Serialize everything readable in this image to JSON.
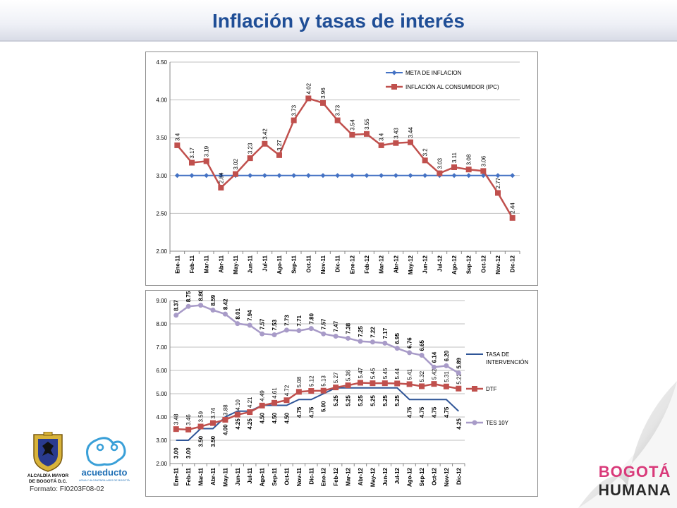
{
  "header": {
    "title": "Inflación y tasas de interés"
  },
  "footer": {
    "format_label": "Formato: FI0203F08-02",
    "logo_bogota": "ALCALDÍA MAYOR DE BOGOTÁ D.C.",
    "logo_bogota_lines": [
      "ALCALDÍA MAYOR",
      "DE BOGOTÁ D.C."
    ],
    "logo_acueducto": "acueducto",
    "logo_acueducto_sub": "AGUA Y ALCANTARILLADO DE BOGOTÁ",
    "logo_bh_top": "BOGOTÁ",
    "logo_bh_bottom": "HUMANA"
  },
  "colors": {
    "title": "#1f4e96",
    "blue": "#4472c4",
    "red": "#c0504d",
    "purple": "#a89bc8",
    "dark_blue": "#2f5597"
  },
  "chart_data": [
    {
      "type": "line",
      "title": "",
      "categories": [
        "Ene-11",
        "Feb-11",
        "Mar-11",
        "Abr-11",
        "May-11",
        "Jun-11",
        "Jul-11",
        "Ago-11",
        "Sep-11",
        "Oct-11",
        "Nov-11",
        "Dic-11",
        "Ene-12",
        "Feb-12",
        "Mar-12",
        "Abr-12",
        "May-12",
        "Jun-12",
        "Jul-12",
        "Ago-12",
        "Sep-12",
        "Oct-12",
        "Nov-12",
        "Dic-12"
      ],
      "ylim": [
        2.0,
        4.5
      ],
      "yticks": [
        "2.00",
        "2.50",
        "3.00",
        "3.50",
        "4.00",
        "4.50"
      ],
      "grid": true,
      "legend": "top-right",
      "series": [
        {
          "name": "META DE INFLACION",
          "values": [
            3,
            3,
            3,
            3,
            3,
            3,
            3,
            3,
            3,
            3,
            3,
            3,
            3,
            3,
            3,
            3,
            3,
            3,
            3,
            3,
            3,
            3,
            3,
            3
          ]
        },
        {
          "name": "INFLACIÓN AL CONSUMIDOR (IPC)",
          "values": [
            3.4,
            3.17,
            3.19,
            2.84,
            3.02,
            3.23,
            3.42,
            3.27,
            3.73,
            4.02,
            3.96,
            3.73,
            3.54,
            3.55,
            3.4,
            3.43,
            3.44,
            3.2,
            3.03,
            3.11,
            3.08,
            3.06,
            2.77,
            2.44
          ],
          "labels": [
            "3.4",
            "3.17",
            "3.19",
            "2.84",
            "3.02",
            "3.23",
            "3.42",
            "3.27",
            "3.73",
            "4.02",
            "3.96",
            "3.73",
            "3.54",
            "3.55",
            "3.4",
            "3.43",
            "3.44",
            "3.2",
            "3.03",
            "3.11",
            "3.08",
            "3.06",
            "2.77",
            "2.44"
          ]
        }
      ]
    },
    {
      "type": "line",
      "title": "",
      "categories": [
        "Ene-11",
        "Feb-11",
        "Mar-11",
        "Abr-11",
        "May-11",
        "Jun-11",
        "Jul-11",
        "Ago-11",
        "Sep-11",
        "Oct-11",
        "Nov-11",
        "Dic-11",
        "Ene-12",
        "Feb-12",
        "Mar-12",
        "Abr-12",
        "May-12",
        "Jun-12",
        "Jul-12",
        "Ago-12",
        "Sep-12",
        "Oct-12",
        "Nov-12",
        "Dic-12"
      ],
      "ylim": [
        2.0,
        9.0
      ],
      "yticks": [
        "2.00",
        "3.00",
        "4.00",
        "5.00",
        "6.00",
        "7.00",
        "8.00",
        "9.00"
      ],
      "grid": true,
      "legend": "right",
      "series": [
        {
          "name": "TASA DE INTERVENCIÓN",
          "values": [
            3.0,
            3.0,
            3.5,
            3.5,
            4.0,
            4.25,
            4.25,
            4.5,
            4.5,
            4.5,
            4.75,
            4.75,
            5.0,
            5.25,
            5.25,
            5.25,
            5.25,
            5.25,
            5.25,
            4.75,
            4.75,
            4.75,
            4.75,
            4.25
          ],
          "labels": [
            "3.00",
            "3.00",
            "3.50",
            "3.50",
            "4.00",
            "4.25",
            "4.25",
            "4.50",
            "4.50",
            "4.50",
            "4.75",
            "4.75",
            "5.00",
            "5.25",
            "5.25",
            "5.25",
            "5.25",
            "5.25",
            "5.25",
            "4.75",
            "4.75",
            "4.75",
            "4.75",
            "4.25"
          ]
        },
        {
          "name": "DTF",
          "values": [
            3.48,
            3.46,
            3.59,
            3.74,
            3.88,
            4.1,
            4.21,
            4.49,
            4.61,
            4.72,
            5.08,
            5.12,
            5.13,
            5.27,
            5.36,
            5.47,
            5.45,
            5.45,
            5.44,
            5.41,
            5.32,
            5.42,
            5.31,
            5.22
          ],
          "labels": [
            "3.48",
            "3.46",
            "3.59",
            "3.74",
            "3.88",
            "4.10",
            "4.21",
            "4.49",
            "4.61",
            "4.72",
            "5.08",
            "5.12",
            "5.13",
            "5.27",
            "5.36",
            "5.47",
            "5.45",
            "5.45",
            "5.44",
            "5.41",
            "5.32",
            "5.42",
            "5.31",
            "5.22"
          ]
        },
        {
          "name": "TES 10Y",
          "values": [
            8.37,
            8.75,
            8.8,
            8.59,
            8.42,
            8.01,
            7.94,
            7.57,
            7.53,
            7.73,
            7.71,
            7.8,
            7.57,
            7.47,
            7.38,
            7.25,
            7.22,
            7.17,
            6.95,
            6.76,
            6.65,
            6.14,
            6.2,
            5.89
          ],
          "labels": [
            "8.37",
            "8.75",
            "8.80",
            "8.59",
            "8.42",
            "8.01",
            "7.94",
            "7.57",
            "7.53",
            "7.73",
            "7.71",
            "7.80",
            "7.57",
            "7.47",
            "7.38",
            "7.25",
            "7.22",
            "7.17",
            "6.95",
            "6.76",
            "6.65",
            "6.14",
            "6.20",
            "5.89"
          ]
        }
      ]
    }
  ]
}
